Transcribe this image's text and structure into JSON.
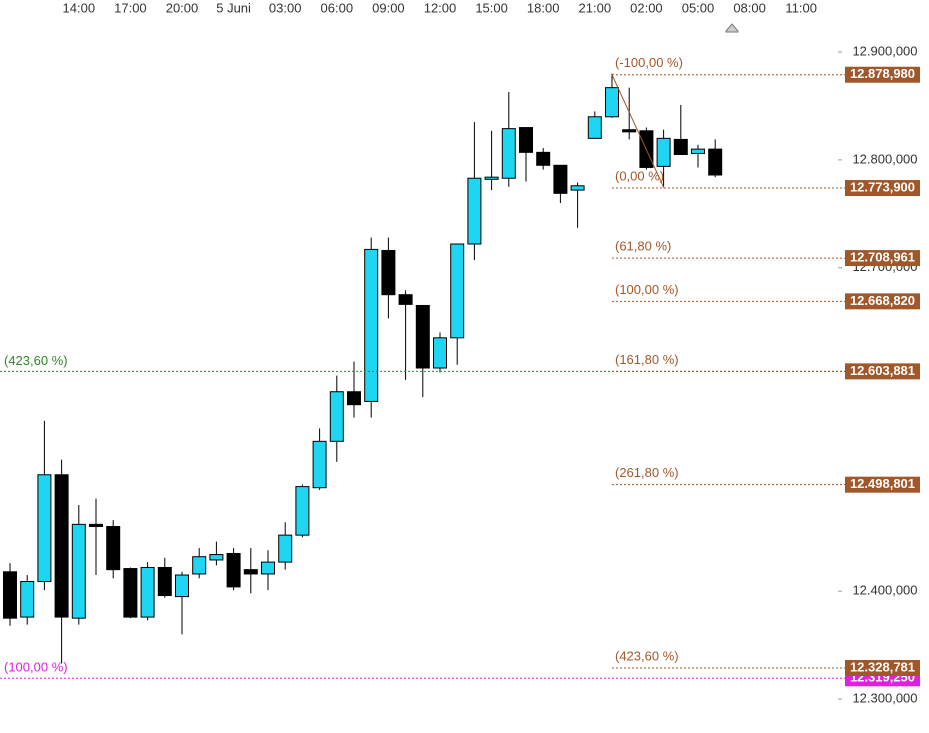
{
  "chart_data": {
    "type": "candlestick",
    "categories": [
      null,
      null,
      null,
      null,
      "14:00",
      null,
      null,
      "17:00",
      null,
      null,
      "20:00",
      null,
      null,
      "5 Juni",
      null,
      null,
      "03:00",
      null,
      null,
      "06:00",
      null,
      null,
      "09:00",
      null,
      null,
      "12:00",
      null,
      null,
      "15:00",
      null,
      null,
      "18:00",
      null,
      null,
      "21:00",
      null,
      null,
      "02:00",
      null,
      null,
      "05:00",
      null,
      null,
      "08:00",
      null,
      null,
      "11:00"
    ],
    "series": [
      {
        "up_color": "#1ed6f2",
        "down_color": "#000000",
        "open": [
          12.418,
          12.376,
          12.409,
          12.508,
          12.375,
          12.462,
          12.46,
          12.421,
          12.376,
          12.422,
          12.395,
          12.416,
          12.429,
          12.435,
          12.42,
          12.416,
          12.427,
          12.452,
          12.496,
          12.539,
          12.585,
          12.576,
          12.716,
          12.675,
          12.665,
          12.607,
          12.635,
          12.722,
          12.782,
          12.783,
          12.83,
          12.807,
          12.795,
          12.772,
          12.82,
          12.84,
          12.828,
          12.827,
          12.794,
          12.819,
          12.806,
          12.81,
          null,
          null,
          null,
          null,
          null
        ],
        "high": [
          12.426,
          12.415,
          12.558,
          12.522,
          12.48,
          12.486,
          12.466,
          12.422,
          12.427,
          12.431,
          12.418,
          12.44,
          12.446,
          12.44,
          12.44,
          12.438,
          12.464,
          12.499,
          12.551,
          12.6,
          12.613,
          12.728,
          12.728,
          12.679,
          12.665,
          12.64,
          12.722,
          12.835,
          12.827,
          12.863,
          12.83,
          12.811,
          12.795,
          12.779,
          12.845,
          12.88,
          12.867,
          12.83,
          12.828,
          12.851,
          12.814,
          12.819,
          null,
          null,
          null,
          null,
          null
        ],
        "low": [
          12.368,
          12.369,
          12.401,
          12.333,
          12.369,
          12.415,
          12.412,
          12.375,
          12.373,
          12.394,
          12.36,
          12.412,
          12.424,
          12.401,
          12.398,
          12.401,
          12.42,
          12.45,
          12.494,
          12.52,
          12.561,
          12.561,
          12.653,
          12.596,
          12.58,
          12.603,
          12.61,
          12.707,
          12.772,
          12.775,
          12.78,
          12.791,
          12.76,
          12.737,
          12.82,
          12.839,
          12.819,
          12.791,
          12.775,
          12.805,
          12.793,
          12.784,
          null,
          null,
          null,
          null,
          null
        ],
        "close": [
          12.375,
          12.409,
          12.508,
          12.376,
          12.462,
          12.46,
          12.42,
          12.376,
          12.422,
          12.396,
          12.415,
          12.432,
          12.434,
          12.404,
          12.416,
          12.427,
          12.452,
          12.497,
          12.539,
          12.585,
          12.573,
          12.717,
          12.675,
          12.666,
          12.607,
          12.635,
          12.722,
          12.783,
          12.784,
          12.829,
          12.807,
          12.795,
          12.769,
          12.776,
          12.84,
          12.867,
          12.826,
          12.793,
          12.82,
          12.805,
          12.81,
          12.786,
          null,
          null,
          null,
          null,
          null
        ]
      }
    ],
    "ylim": [
      12.2685,
      12.9483
    ],
    "yticks": [
      {
        "value": 12.3,
        "label": "12.300,000"
      },
      {
        "value": 12.4,
        "label": "12.400,000"
      },
      {
        "value": 12.7,
        "label": "12.700,000"
      },
      {
        "value": 12.8,
        "label": "12.800,000"
      },
      {
        "value": 12.9,
        "label": "12.900,000"
      }
    ],
    "fib_color": "#a0582a",
    "fib_levels": [
      {
        "name": "(-100,00 %)",
        "value": 12.87898,
        "value_label": "12.878,980"
      },
      {
        "name": "(0,00 %)",
        "value": 12.7739,
        "value_label": "12.773,900"
      },
      {
        "name": "(61,80 %)",
        "value": 12.708961,
        "value_label": "12.708,961"
      },
      {
        "name": "(100,00 %)",
        "value": 12.66882,
        "value_label": "12.668,820"
      },
      {
        "name": "(161,80 %)",
        "value": 12.603881,
        "value_label": "12.603,881"
      },
      {
        "name": "(261,80 %)",
        "value": 12.498801,
        "value_label": "12.498,801"
      },
      {
        "name": "(423,60 %)",
        "value": 12.328781,
        "value_label": "12.328,781"
      }
    ],
    "extension_levels": [
      {
        "name": "(423,60 %)",
        "value": 12.603881,
        "color": "#2e8b22"
      },
      {
        "name": "(100,00 %)",
        "value": 12.31925,
        "value_label": "12.319,250",
        "color": "#e020e0"
      }
    ]
  }
}
